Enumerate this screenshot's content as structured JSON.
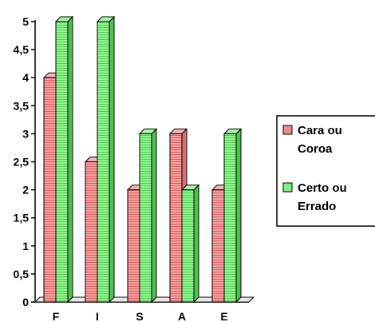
{
  "chart_data": {
    "type": "bar",
    "categories": [
      "F",
      "I",
      "S",
      "A",
      "E"
    ],
    "series": [
      {
        "name": "Cara ou Coroa",
        "values": [
          4,
          2.5,
          2,
          3,
          2
        ],
        "color": "#f28c8c"
      },
      {
        "name": "Certo ou Errado",
        "values": [
          5,
          5,
          3,
          2,
          3
        ],
        "color": "#7fef7f"
      }
    ],
    "ylim": [
      0,
      5
    ],
    "yticks": [
      "0",
      "0,5",
      "1",
      "1,5",
      "2",
      "2,5",
      "3",
      "3,5",
      "4",
      "4,5",
      "5"
    ],
    "grid": false,
    "legend_position": "right",
    "style": "3d"
  }
}
